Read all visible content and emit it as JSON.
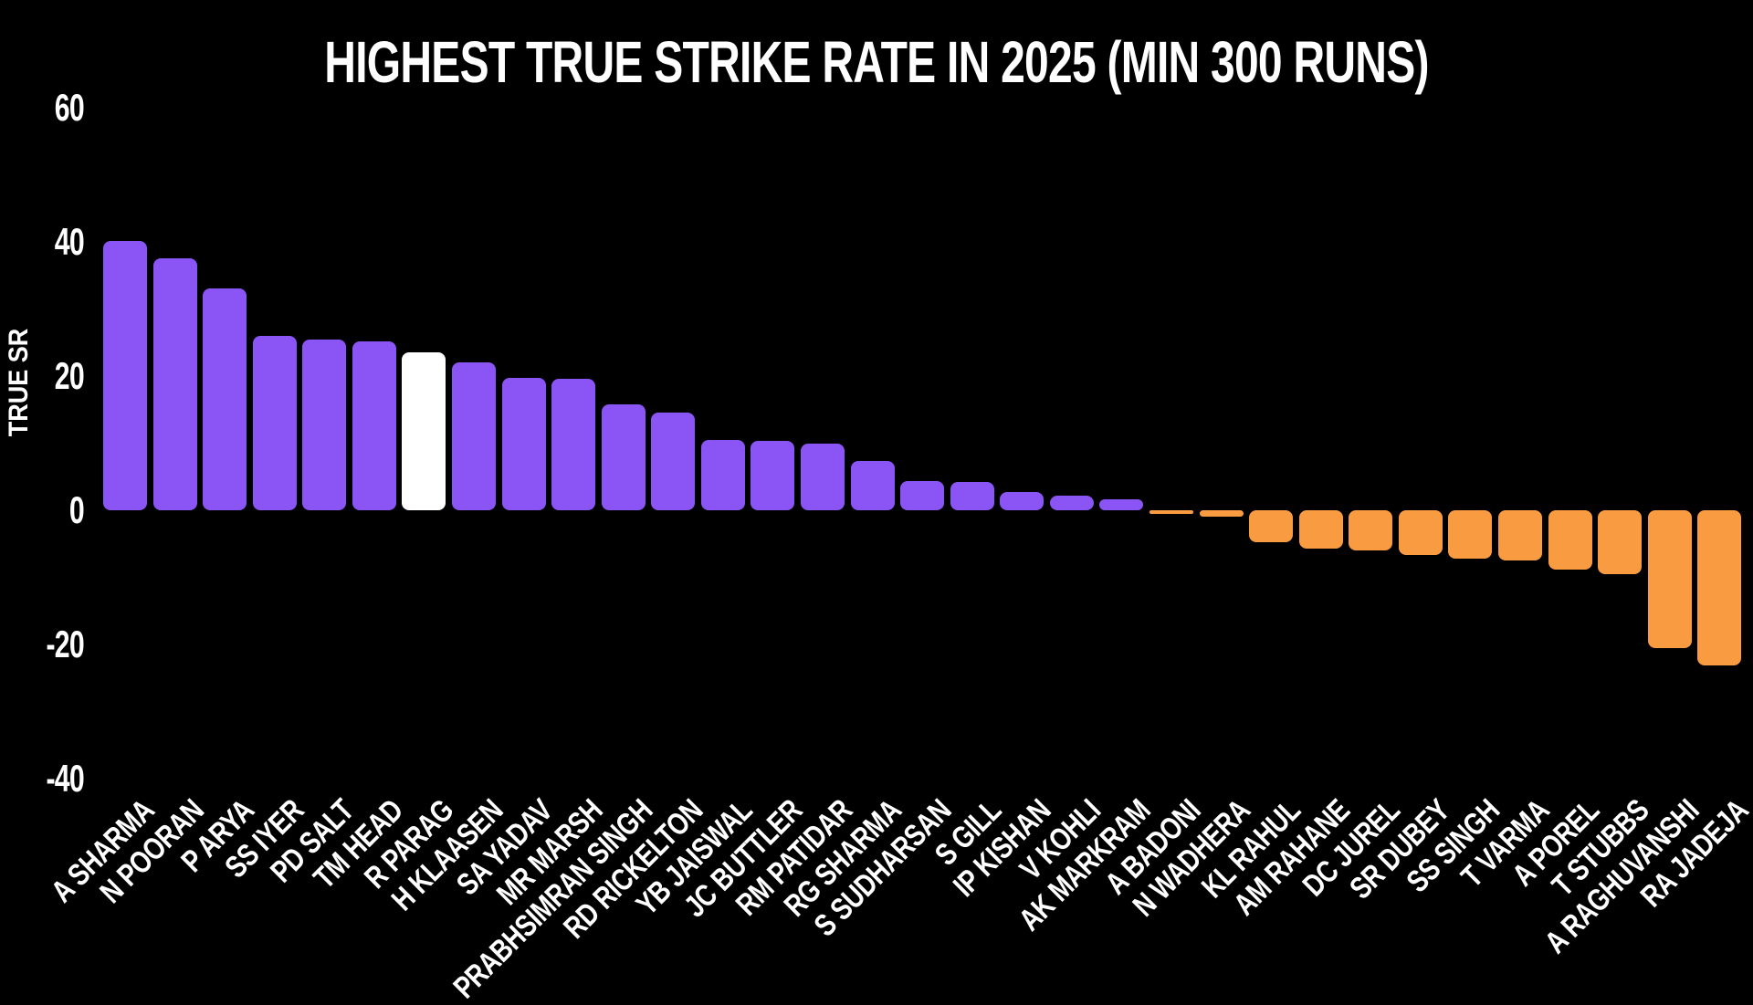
{
  "page": {
    "background": "#000000",
    "text_color": "#FFFFFF"
  },
  "chart_data": {
    "type": "bar",
    "title": "HIGHEST TRUE STRIKE RATE IN 2025 (MIN 300 RUNS)",
    "xlabel": "",
    "ylabel": "TRUE SR",
    "ylim": [
      -40,
      60
    ],
    "yticks": [
      60,
      40,
      20,
      0,
      -20,
      -40
    ],
    "grid": false,
    "legend_position": "none",
    "categories": [
      "A SHARMA",
      "N POORAN",
      "P ARYA",
      "SS IYER",
      "PD SALT",
      "TM HEAD",
      "R PARAG",
      "H KLAASEN",
      "SA YADAV",
      "MR MARSH",
      "PRABHSIMRAN SINGH",
      "RD RICKELTON",
      "YB JAISWAL",
      "JC BUTTLER",
      "RM PATIDAR",
      "RG SHARMA",
      "S SUDHARSAN",
      "S GILL",
      "IP KISHAN",
      "V KOHLI",
      "AK MARKRAM",
      "A BADONI",
      "N WADHERA",
      "KL RAHUL",
      "AM RAHANE",
      "DC JUREL",
      "SR DUBEY",
      "SS SINGH",
      "T VARMA",
      "A POREL",
      "T STUBBS",
      "A RAGHUVANSHI",
      "RA JADEJA"
    ],
    "values": [
      40.1,
      37.6,
      33.1,
      26.0,
      25.4,
      25.2,
      23.6,
      22.1,
      19.7,
      19.6,
      15.8,
      14.6,
      10.5,
      10.3,
      10.0,
      7.3,
      4.4,
      4.2,
      2.7,
      2.2,
      1.7,
      -0.6,
      -1.0,
      -4.8,
      -5.7,
      -6.0,
      -6.6,
      -7.2,
      -7.5,
      -8.8,
      -9.5,
      -20.6,
      -23.1
    ],
    "bar_colors": {
      "positive": "#8B55F6",
      "negative": "#F99C41",
      "highlight": "#FFFFFF"
    },
    "highlight_category": "R PARAG"
  }
}
